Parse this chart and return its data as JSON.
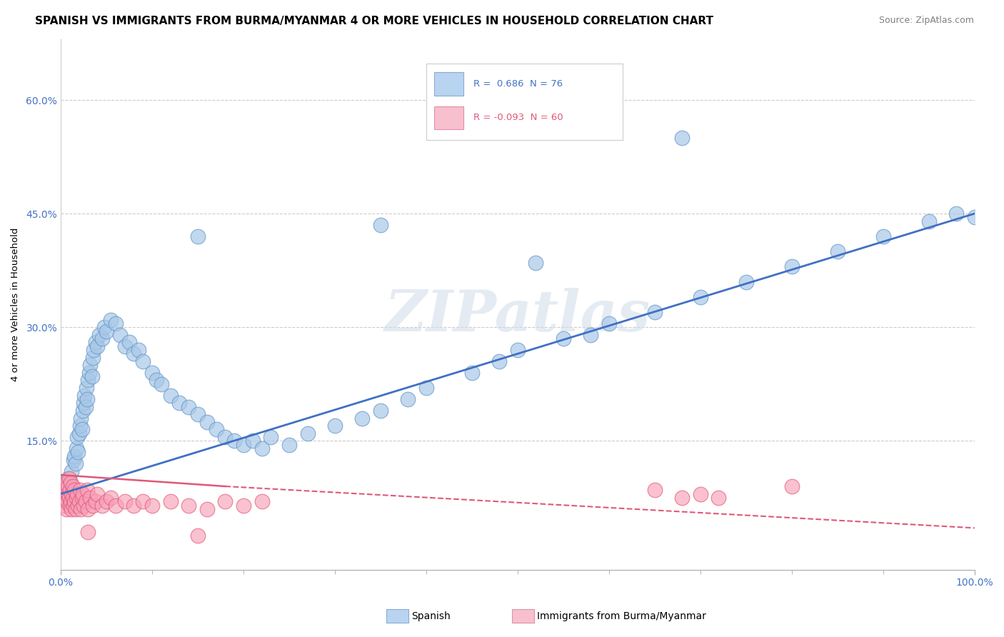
{
  "title": "SPANISH VS IMMIGRANTS FROM BURMA/MYANMAR 4 OR MORE VEHICLES IN HOUSEHOLD CORRELATION CHART",
  "source": "Source: ZipAtlas.com",
  "ylabel": "4 or more Vehicles in Household",
  "xlim": [
    0,
    100
  ],
  "ylim": [
    -2,
    68
  ],
  "xticks": [
    0,
    100
  ],
  "xticklabels": [
    "0.0%",
    "100.0%"
  ],
  "yticks": [
    15,
    30,
    45,
    60
  ],
  "yticklabels": [
    "15.0%",
    "30.0%",
    "45.0%",
    "60.0%"
  ],
  "watermark": "ZIPatlas",
  "grid_color": "#cccccc",
  "background_color": "#ffffff",
  "title_fontsize": 11,
  "axis_fontsize": 9.5,
  "tick_fontsize": 10,
  "blue_scatter": {
    "x": [
      0.8,
      1.0,
      1.2,
      1.4,
      1.5,
      1.6,
      1.7,
      1.8,
      1.9,
      2.0,
      2.1,
      2.2,
      2.3,
      2.4,
      2.5,
      2.6,
      2.7,
      2.8,
      2.9,
      3.0,
      3.1,
      3.2,
      3.4,
      3.5,
      3.6,
      3.8,
      4.0,
      4.2,
      4.5,
      4.8,
      5.0,
      5.5,
      6.0,
      6.5,
      7.0,
      7.5,
      8.0,
      8.5,
      9.0,
      10.0,
      10.5,
      11.0,
      12.0,
      13.0,
      14.0,
      15.0,
      16.0,
      17.0,
      18.0,
      19.0,
      20.0,
      21.0,
      22.0,
      23.0,
      25.0,
      27.0,
      30.0,
      33.0,
      35.0,
      38.0,
      40.0,
      45.0,
      48.0,
      50.0,
      55.0,
      58.0,
      60.0,
      65.0,
      70.0,
      75.0,
      80.0,
      85.0,
      90.0,
      95.0,
      98.0,
      100.0
    ],
    "y": [
      10.0,
      9.5,
      11.0,
      12.5,
      13.0,
      12.0,
      14.0,
      15.5,
      13.5,
      16.0,
      17.0,
      18.0,
      16.5,
      19.0,
      20.0,
      21.0,
      19.5,
      22.0,
      20.5,
      23.0,
      24.0,
      25.0,
      23.5,
      26.0,
      27.0,
      28.0,
      27.5,
      29.0,
      28.5,
      30.0,
      29.5,
      31.0,
      30.5,
      29.0,
      27.5,
      28.0,
      26.5,
      27.0,
      25.5,
      24.0,
      23.0,
      22.5,
      21.0,
      20.0,
      19.5,
      18.5,
      17.5,
      16.5,
      15.5,
      15.0,
      14.5,
      15.0,
      14.0,
      15.5,
      14.5,
      16.0,
      17.0,
      18.0,
      19.0,
      20.5,
      22.0,
      24.0,
      25.5,
      27.0,
      28.5,
      29.0,
      30.5,
      32.0,
      34.0,
      36.0,
      38.0,
      40.0,
      42.0,
      44.0,
      45.0,
      44.5
    ],
    "color": "#a8c8e8",
    "edgecolor": "#6898c8",
    "alpha": 0.7
  },
  "blue_outliers": {
    "x": [
      15.0,
      35.0,
      52.0,
      68.0
    ],
    "y": [
      42.0,
      43.5,
      38.5,
      55.0
    ],
    "color": "#a8c8e8",
    "edgecolor": "#6898c8",
    "alpha": 0.7
  },
  "pink_scatter": {
    "x": [
      0.1,
      0.2,
      0.3,
      0.4,
      0.5,
      0.5,
      0.6,
      0.6,
      0.7,
      0.8,
      0.8,
      0.9,
      0.9,
      1.0,
      1.0,
      1.1,
      1.1,
      1.2,
      1.2,
      1.3,
      1.3,
      1.4,
      1.5,
      1.5,
      1.6,
      1.7,
      1.8,
      1.9,
      2.0,
      2.1,
      2.2,
      2.3,
      2.4,
      2.5,
      2.7,
      2.9,
      3.0,
      3.2,
      3.5,
      3.8,
      4.0,
      4.5,
      5.0,
      5.5,
      6.0,
      7.0,
      8.0,
      9.0,
      10.0,
      12.0,
      14.0,
      16.0,
      18.0,
      20.0,
      22.0,
      65.0,
      68.0,
      70.0,
      72.0,
      80.0
    ],
    "y": [
      7.0,
      8.0,
      6.5,
      9.0,
      7.5,
      8.5,
      6.0,
      9.5,
      7.0,
      8.0,
      9.0,
      7.5,
      10.0,
      6.5,
      8.5,
      7.0,
      9.5,
      6.0,
      8.0,
      7.5,
      9.0,
      6.5,
      7.0,
      8.5,
      6.0,
      7.5,
      8.0,
      6.5,
      7.0,
      8.5,
      6.0,
      7.5,
      8.0,
      6.5,
      7.0,
      8.5,
      6.0,
      7.5,
      6.5,
      7.0,
      8.0,
      6.5,
      7.0,
      7.5,
      6.5,
      7.0,
      6.5,
      7.0,
      6.5,
      7.0,
      6.5,
      6.0,
      7.0,
      6.5,
      7.0,
      8.5,
      7.5,
      8.0,
      7.5,
      9.0
    ],
    "color": "#f8a0b8",
    "edgecolor": "#e05878",
    "alpha": 0.65
  },
  "pink_outliers": {
    "x": [
      3.0,
      15.0
    ],
    "y": [
      3.0,
      2.5
    ],
    "color": "#f8a0b8",
    "edgecolor": "#e05878",
    "alpha": 0.65
  },
  "blue_trend": {
    "x": [
      0,
      100
    ],
    "y": [
      8.0,
      45.0
    ],
    "color": "#4070c4",
    "linewidth": 2.0
  },
  "pink_trend_solid": {
    "x": [
      0,
      18
    ],
    "y": [
      10.5,
      9.0
    ],
    "color": "#e05878",
    "linewidth": 1.8
  },
  "pink_trend_dash": {
    "x": [
      18,
      100
    ],
    "y": [
      9.0,
      3.5
    ],
    "color": "#e05878",
    "linewidth": 1.5,
    "linestyle": "--"
  }
}
